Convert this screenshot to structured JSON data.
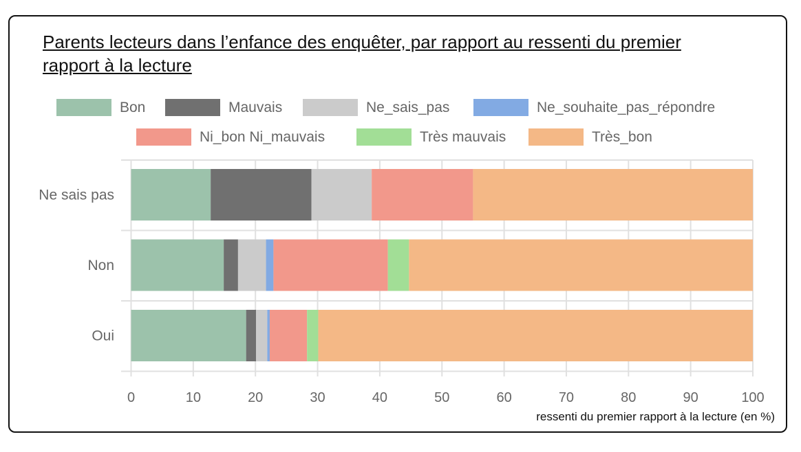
{
  "chart_data": {
    "type": "bar",
    "orientation": "horizontal",
    "stacked": true,
    "title": "Parents lecteurs dans l’enfance des enquêter, par rapport au ressenti du premier rapport à la lecture",
    "xlabel": "ressenti du premier rapport à la lecture (en %)",
    "ylabel": "",
    "xlim": [
      0,
      100
    ],
    "xticks": [
      "0",
      "10",
      "20",
      "30",
      "40",
      "50",
      "60",
      "70",
      "80",
      "90",
      "100"
    ],
    "grid": true,
    "legend_position": "top",
    "categories": [
      "Ne sais pas",
      "Non",
      "Oui"
    ],
    "series": [
      {
        "name": "Bon",
        "color": "#9cc2ab",
        "values": [
          12.8,
          14.9,
          18.5
        ]
      },
      {
        "name": "Mauvais",
        "color": "#707070",
        "values": [
          16.2,
          2.3,
          1.6
        ]
      },
      {
        "name": "Ne_sais_pas",
        "color": "#cbcbcb",
        "values": [
          9.7,
          4.5,
          1.8
        ]
      },
      {
        "name": "Ne_souhaite_pas_répondre",
        "color": "#82aae3",
        "values": [
          0,
          1.2,
          0.4
        ]
      },
      {
        "name": "Ni_bon Ni_mauvais",
        "color": "#f2988b",
        "values": [
          16.3,
          18.4,
          6.0
        ]
      },
      {
        "name": "Très mauvais",
        "color": "#a2de96",
        "values": [
          0,
          3.4,
          1.8
        ]
      },
      {
        "name": "Très_bon",
        "color": "#f4b886",
        "values": [
          45.0,
          55.3,
          69.9
        ]
      }
    ]
  }
}
